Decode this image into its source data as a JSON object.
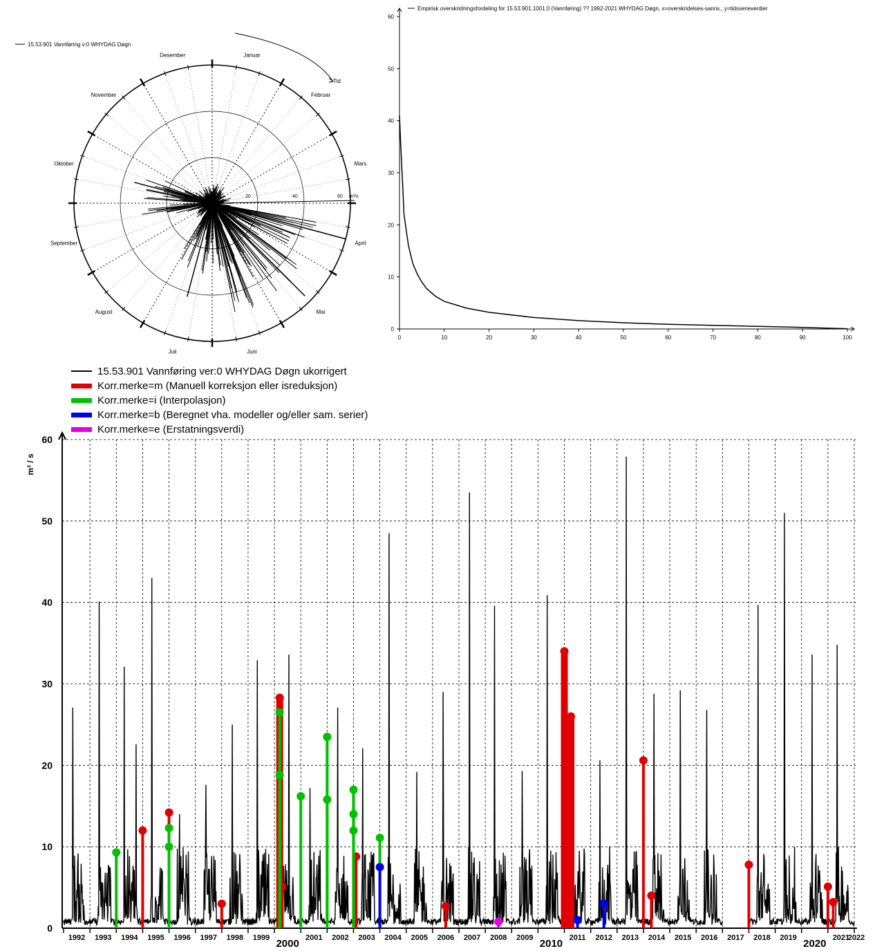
{
  "polar": {
    "legend": "15.53.901  Vannføring v:0  WHYDAG Døgn",
    "months": [
      "Januar",
      "Februar",
      "Mars",
      "April",
      "Mai",
      "Juni",
      "Juli",
      "August",
      "September",
      "Oktober",
      "November",
      "Desember"
    ],
    "time_label": "Tid",
    "ring_labels": [
      "20",
      "40",
      "60"
    ],
    "unit": "m³/s"
  },
  "exceedance": {
    "legend": "Empirisk overskridningsfordeling for 15.53.901.1001.0 (Vannføring) ??  1992-2021 WHYDAG Døgn, x=overskridelses-sanns., y=tidsserieverdier",
    "y_ticks": [
      "0",
      "10",
      "20",
      "30",
      "40",
      "50",
      "60"
    ],
    "x_ticks": [
      "0",
      "10",
      "20",
      "30",
      "40",
      "50",
      "60",
      "70",
      "80",
      "90",
      "100"
    ]
  },
  "timeseries": {
    "legend": [
      {
        "label": "15.53.901    Vannføring  ver:0    WHYDAG  Døgn ukorrigert",
        "color": "#000000"
      },
      {
        "label": "Korr.merke=m (Manuell korreksjon eller isreduksjon)",
        "color": "#e00000"
      },
      {
        "label": "Korr.merke=i (Interpolasjon)",
        "color": "#00c000"
      },
      {
        "label": "Korr.merke=b (Beregnet vha. modeller og/eller sam. serier)",
        "color": "#0000ee"
      },
      {
        "label": "Korr.merke=e (Erstatningsverdi)",
        "color": "#e000e0"
      }
    ],
    "y_axis_label": "m³ / s",
    "y_ticks": [
      "0",
      "10",
      "20",
      "30",
      "40",
      "50",
      "60"
    ],
    "years": [
      "1992",
      "1993",
      "1994",
      "1995",
      "1996",
      "1997",
      "1998",
      "1999",
      "2000",
      "2001",
      "2002",
      "2003",
      "2004",
      "2005",
      "2006",
      "2007",
      "2008",
      "2009",
      "2010",
      "2011",
      "2012",
      "2013",
      "2014",
      "2015",
      "2016",
      "2017",
      "2018",
      "2019",
      "2020",
      "2021",
      "2022"
    ]
  },
  "chart_data": [
    {
      "type": "line",
      "title": "15.53.901  Vannføring v:0  WHYDAG Døgn",
      "note": "polar seasonal plot; angle = day of year, radius = discharge",
      "r_ticks": [
        20,
        40,
        60
      ],
      "unit": "m³/s",
      "peaks": [
        {
          "month": "Mai",
          "value": 57
        },
        {
          "month": "Mai",
          "value": 48
        },
        {
          "month": "Juli",
          "value": 42
        },
        {
          "month": "Oktober",
          "value": 35
        },
        {
          "month": "April",
          "value": 60
        }
      ]
    },
    {
      "type": "line",
      "title": "Empirisk overskridningsfordeling for 15.53.901.1001.0 (Vannføring) ??  1992-2021 WHYDAG Døgn",
      "xlim": [
        0,
        100
      ],
      "ylim": [
        0,
        60
      ],
      "x": [
        0,
        0.3,
        0.7,
        1,
        2,
        3,
        4,
        5,
        6,
        8,
        10,
        15,
        20,
        30,
        40,
        50,
        60,
        70,
        80,
        90,
        100
      ],
      "y": [
        41,
        35,
        28,
        22,
        16,
        12.5,
        10.5,
        9,
        7.8,
        6.3,
        5.3,
        4,
        3.2,
        2.2,
        1.6,
        1.2,
        0.9,
        0.7,
        0.5,
        0.3,
        0.05
      ]
    },
    {
      "type": "line",
      "title": "",
      "ylabel": "m³ / s",
      "ylim": [
        0,
        60
      ],
      "xlim": [
        1992,
        2022
      ],
      "series": [
        {
          "name": "15.53.901    Vannføring  ver:0    WHYDAG  Døgn ukorrigert",
          "annual_peaks": [
            {
              "x": 1992.35,
              "y": 27.1
            },
            {
              "x": 1993.35,
              "y": 40.1
            },
            {
              "x": 1994.3,
              "y": 32.1
            },
            {
              "x": 1994.75,
              "y": 22.6
            },
            {
              "x": 1995.35,
              "y": 43.0
            },
            {
              "x": 1996.4,
              "y": 14.0
            },
            {
              "x": 1997.4,
              "y": 17.6
            },
            {
              "x": 1998.4,
              "y": 25.0
            },
            {
              "x": 1999.35,
              "y": 32.9
            },
            {
              "x": 2000.55,
              "y": 33.6
            },
            {
              "x": 2001.35,
              "y": 17.2
            },
            {
              "x": 2002.4,
              "y": 27.1
            },
            {
              "x": 2003.35,
              "y": 22.1
            },
            {
              "x": 2004.35,
              "y": 48.5
            },
            {
              "x": 2005.4,
              "y": 19.2
            },
            {
              "x": 2006.4,
              "y": 29.0
            },
            {
              "x": 2007.4,
              "y": 53.5
            },
            {
              "x": 2008.35,
              "y": 39.6
            },
            {
              "x": 2009.4,
              "y": 19.3
            },
            {
              "x": 2010.35,
              "y": 40.9
            },
            {
              "x": 2012.35,
              "y": 20.6
            },
            {
              "x": 2013.35,
              "y": 57.9
            },
            {
              "x": 2014.4,
              "y": 28.8
            },
            {
              "x": 2015.4,
              "y": 29.2
            },
            {
              "x": 2016.4,
              "y": 26.8
            },
            {
              "x": 2018.35,
              "y": 39.7
            },
            {
              "x": 2019.35,
              "y": 51.0
            },
            {
              "x": 2020.4,
              "y": 33.6
            },
            {
              "x": 2021.35,
              "y": 34.8
            }
          ]
        },
        {
          "name": "Korr.merke=m (Manuell korreksjon eller isreduksjon)",
          "points": [
            {
              "x": 1995.0,
              "y": 12.0
            },
            {
              "x": 1996.0,
              "y": 14.2
            },
            {
              "x": 1998.0,
              "y": 3.0
            },
            {
              "x": 2000.2,
              "y": 28.3
            },
            {
              "x": 2000.3,
              "y": 5.1
            },
            {
              "x": 2003.1,
              "y": 8.8
            },
            {
              "x": 2006.5,
              "y": 2.7
            },
            {
              "x": 2011.0,
              "y": 34.0
            },
            {
              "x": 2011.25,
              "y": 26.0
            },
            {
              "x": 2014.0,
              "y": 20.6
            },
            {
              "x": 2014.3,
              "y": 4.0
            },
            {
              "x": 2018.0,
              "y": 7.8
            },
            {
              "x": 2021.0,
              "y": 5.1
            },
            {
              "x": 2021.2,
              "y": 3.2
            }
          ]
        },
        {
          "name": "Korr.merke=i (Interpolasjon)",
          "points": [
            {
              "x": 1994.0,
              "y": 9.3
            },
            {
              "x": 1996.0,
              "y": 12.3
            },
            {
              "x": 1996.0,
              "y": 10.0
            },
            {
              "x": 2000.2,
              "y": 26.5
            },
            {
              "x": 2000.2,
              "y": 18.8
            },
            {
              "x": 2001.0,
              "y": 16.2
            },
            {
              "x": 2002.0,
              "y": 23.5
            },
            {
              "x": 2002.0,
              "y": 15.8
            },
            {
              "x": 2003.0,
              "y": 17.0
            },
            {
              "x": 2003.0,
              "y": 14.0
            },
            {
              "x": 2003.0,
              "y": 12.0
            },
            {
              "x": 2004.0,
              "y": 11.1
            }
          ]
        },
        {
          "name": "Korr.merke=b (Beregnet vha. modeller og/eller sam. serier)",
          "points": [
            {
              "x": 2004.0,
              "y": 7.5
            },
            {
              "x": 2011.5,
              "y": 1.0
            },
            {
              "x": 2012.5,
              "y": 3.0
            }
          ]
        },
        {
          "name": "Korr.merke=e (Erstatningsverdi)",
          "points": [
            {
              "x": 2008.5,
              "y": 0.8
            }
          ]
        }
      ]
    }
  ]
}
